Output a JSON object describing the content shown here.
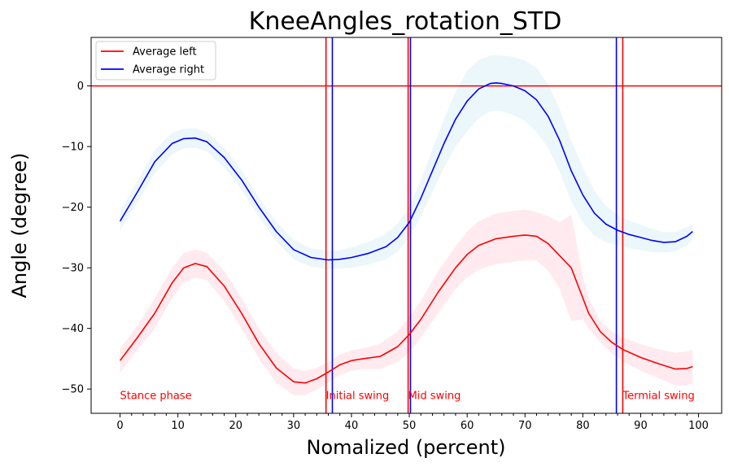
{
  "chart_data": {
    "type": "line",
    "title": "KneeAngles_rotation_STD",
    "xlabel": "Nomalized (percent)",
    "ylabel": "Angle (degree)",
    "xlim": [
      -5,
      104
    ],
    "ylim": [
      -54,
      8
    ],
    "xticks": [
      0,
      10,
      20,
      30,
      40,
      50,
      60,
      70,
      80,
      90,
      100
    ],
    "yticks": [
      0,
      -10,
      -20,
      -30,
      -40,
      -50
    ],
    "legend_position": "top-left",
    "grid": false,
    "series": [
      {
        "name": "Average left",
        "color": "#ff0000",
        "band_color": "#ffe4ea",
        "x": [
          0,
          3,
          6,
          9,
          11,
          13,
          15,
          18,
          21,
          24,
          27,
          30,
          32,
          34,
          36,
          38,
          40,
          42,
          45,
          48,
          50,
          52,
          55,
          58,
          60,
          62,
          65,
          68,
          70,
          72,
          74,
          76,
          78,
          80,
          81,
          83,
          85,
          87,
          90,
          93,
          96,
          98,
          99
        ],
        "y": [
          -45.3,
          -41.5,
          -37.5,
          -32.5,
          -30,
          -29.3,
          -29.8,
          -33,
          -37.5,
          -42.5,
          -46.5,
          -48.8,
          -49,
          -48.3,
          -47.2,
          -46,
          -45.3,
          -45,
          -44.6,
          -43,
          -41,
          -38.5,
          -34,
          -30,
          -27.8,
          -26.3,
          -25.2,
          -24.8,
          -24.6,
          -24.8,
          -26,
          -28,
          -30,
          -35,
          -37.5,
          -40.5,
          -42.3,
          -43.5,
          -44.8,
          -45.8,
          -46.7,
          -46.6,
          -46.3
        ],
        "upper": [
          -43.3,
          -39.5,
          -35,
          -30,
          -27.5,
          -27,
          -27.5,
          -30.5,
          -35,
          -40,
          -44,
          -46.6,
          -47,
          -46.5,
          -45.5,
          -44.3,
          -43.6,
          -43.3,
          -42.5,
          -40.5,
          -38,
          -35.5,
          -30.5,
          -26.5,
          -24,
          -22.3,
          -21,
          -20.6,
          -20.4,
          -20.8,
          -21.5,
          -22.5,
          -21.2,
          -31.5,
          -35,
          -38.7,
          -40.5,
          -41.5,
          -42.6,
          -43.4,
          -44,
          -43.8,
          -43.5
        ],
        "lower": [
          -47.3,
          -43.5,
          -40,
          -35,
          -32.5,
          -31.6,
          -32.1,
          -35.5,
          -40,
          -45,
          -49,
          -51,
          -51,
          -50.1,
          -48.9,
          -47.7,
          -47,
          -46.7,
          -46.7,
          -45.5,
          -44,
          -41.5,
          -37.5,
          -33.5,
          -31.6,
          -30.3,
          -29.4,
          -29,
          -28.8,
          -28.8,
          -30.5,
          -33.5,
          -38.8,
          -38.5,
          -40,
          -42.3,
          -44.1,
          -45.5,
          -47,
          -48.2,
          -49.4,
          -49.4,
          -49.1
        ]
      },
      {
        "name": "Average right",
        "color": "#0000ff",
        "band_color": "#e6f4f9",
        "x": [
          0,
          3,
          6,
          9,
          11,
          13,
          15,
          18,
          21,
          24,
          27,
          30,
          33,
          36,
          38,
          40,
          43,
          46,
          48,
          50,
          52,
          54,
          56,
          58,
          60,
          62,
          64,
          65,
          66,
          68,
          70,
          72,
          74,
          76,
          78,
          80,
          82,
          84,
          86,
          88,
          90,
          92,
          94,
          96,
          98,
          99
        ],
        "y": [
          -22.3,
          -17.5,
          -12.5,
          -9.5,
          -8.7,
          -8.6,
          -9.2,
          -11.8,
          -15.5,
          -20,
          -24,
          -27,
          -28.3,
          -28.7,
          -28.6,
          -28.3,
          -27.6,
          -26.5,
          -25,
          -22.5,
          -18.5,
          -14,
          -9.5,
          -5.5,
          -2.5,
          -0.5,
          0.4,
          0.5,
          0.4,
          0,
          -0.8,
          -2.3,
          -5,
          -9,
          -14,
          -18,
          -21,
          -22.8,
          -23.8,
          -24.5,
          -25,
          -25.5,
          -25.8,
          -25.7,
          -24.8,
          -24
        ],
        "upper": [
          -20.8,
          -15.7,
          -10.6,
          -7.7,
          -7.1,
          -7.0,
          -7.6,
          -10.2,
          -13.9,
          -18.4,
          -22.4,
          -25.4,
          -26.8,
          -27.2,
          -27.1,
          -26.6,
          -25.7,
          -24.4,
          -22.7,
          -20,
          -15.5,
          -10.5,
          -5.5,
          -1,
          2.5,
          4.3,
          5,
          5.1,
          5,
          4.8,
          4.2,
          3,
          0.2,
          -3.8,
          -9,
          -13.5,
          -17.3,
          -19.8,
          -21.3,
          -22.2,
          -22.9,
          -23.6,
          -24.1,
          -24.1,
          -23.3,
          -22.7
        ],
        "lower": [
          -23.8,
          -19.3,
          -14.4,
          -11.3,
          -10.3,
          -10.2,
          -10.8,
          -13.4,
          -17.1,
          -21.6,
          -25.6,
          -28.6,
          -29.8,
          -30.2,
          -30.1,
          -30,
          -29.5,
          -28.6,
          -27.3,
          -25,
          -21.5,
          -17.5,
          -13.5,
          -10,
          -7.5,
          -5.3,
          -4.2,
          -4.1,
          -4.2,
          -4.8,
          -5.8,
          -7.6,
          -10.2,
          -14.2,
          -19,
          -22.5,
          -24.7,
          -25.8,
          -26.3,
          -26.8,
          -27.1,
          -27.4,
          -27.5,
          -27.3,
          -26.3,
          -25.3
        ]
      }
    ],
    "reference_lines": {
      "horizontal": [
        {
          "y": 0,
          "color": "#ff0000"
        }
      ],
      "vertical": [
        {
          "x": 35.6,
          "color": "#ff0000"
        },
        {
          "x": 36.7,
          "color": "#0000ff"
        },
        {
          "x": 49.8,
          "color": "#ff0000"
        },
        {
          "x": 50.2,
          "color": "#0000ff"
        },
        {
          "x": 85.8,
          "color": "#0000ff"
        },
        {
          "x": 86.9,
          "color": "#ff0000"
        }
      ]
    },
    "annotations": [
      {
        "text": "Stance phase",
        "x": 0,
        "y": -51,
        "color": "#ff0000"
      },
      {
        "text": "Initial swing",
        "x": 35.6,
        "y": -51,
        "color": "#ff0000"
      },
      {
        "text": "Mid swing",
        "x": 49.8,
        "y": -51,
        "color": "#ff0000"
      },
      {
        "text": "Termial swing",
        "x": 86.9,
        "y": -51,
        "color": "#ff0000"
      }
    ]
  }
}
